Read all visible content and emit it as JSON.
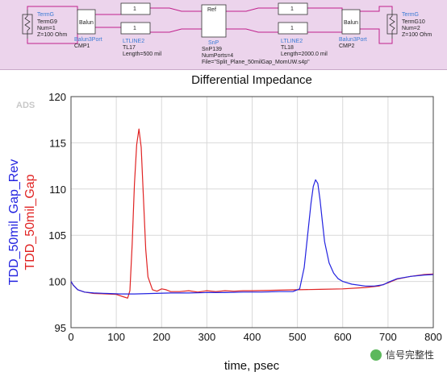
{
  "schematic": {
    "term_left": {
      "label": "TermG",
      "name": "TermG9",
      "num": "Num=1",
      "z": "Z=100 Ohm"
    },
    "balun_left": {
      "type": "Balun3Port",
      "name": "CMP1"
    },
    "tline_left": {
      "type": "LTLINE2",
      "name": "TL17",
      "length": "Length=500 mil"
    },
    "snp": {
      "type": "SnP",
      "name": "SnP139",
      "ports": "NumPorts=4",
      "file": "File=\"Split_Plane_50milGap_MomUW.s4p\""
    },
    "tline_right": {
      "type": "LTLINE2",
      "name": "TL18",
      "length": "Length=2000.0 mil"
    },
    "balun_right": {
      "type": "Balun3Port",
      "name": "CMP2"
    },
    "term_right": {
      "label": "TermG",
      "name": "TermG10",
      "num": "Num=2",
      "z": "Z=100 Ohm"
    },
    "balun_glyph": "Balun",
    "line_glyph": "1",
    "snp_glyph": "Ref"
  },
  "watermark": "信号完整性",
  "colors": {
    "rev": "#2323e0",
    "gap": "#e02323",
    "schem_bg": "#ecd4ec"
  },
  "chart_data": {
    "type": "line",
    "title": "Differential Impedance",
    "badge": "ADS",
    "xlabel": "time, psec",
    "xlim": [
      0,
      800
    ],
    "ylim": [
      95,
      120
    ],
    "xticks": [
      0,
      100,
      200,
      300,
      400,
      500,
      600,
      700,
      800
    ],
    "yticks": [
      95,
      100,
      105,
      110,
      115,
      120
    ],
    "grid": true,
    "series": [
      {
        "name": "TDD_50mil_Gap_Rev",
        "color": "#2323e0",
        "x": [
          0,
          5,
          15,
          30,
          50,
          80,
          110,
          140,
          180,
          220,
          260,
          300,
          340,
          380,
          420,
          460,
          490,
          505,
          515,
          522,
          530,
          535,
          540,
          545,
          550,
          555,
          560,
          570,
          580,
          590,
          600,
          620,
          650,
          670,
          690,
          700,
          720,
          750,
          780,
          800
        ],
        "y": [
          100.0,
          99.6,
          99.1,
          98.85,
          98.75,
          98.7,
          98.65,
          98.65,
          98.7,
          98.75,
          98.75,
          98.8,
          98.8,
          98.85,
          98.85,
          98.9,
          98.9,
          99.2,
          101.5,
          104.8,
          108.5,
          110.3,
          111.0,
          110.6,
          108.8,
          106.5,
          104.3,
          102.0,
          100.9,
          100.3,
          100.0,
          99.7,
          99.5,
          99.5,
          99.65,
          99.9,
          100.3,
          100.55,
          100.7,
          100.75
        ]
      },
      {
        "name": "TDD_50mil_Gap",
        "color": "#e02323",
        "x": [
          0,
          5,
          15,
          30,
          50,
          80,
          100,
          115,
          125,
          130,
          135,
          140,
          145,
          150,
          155,
          160,
          165,
          170,
          180,
          190,
          200,
          210,
          220,
          240,
          260,
          280,
          300,
          320,
          340,
          360,
          380,
          400,
          450,
          500,
          550,
          600,
          650,
          680,
          700,
          720,
          750,
          780,
          800
        ],
        "y": [
          100.0,
          99.6,
          99.1,
          98.85,
          98.7,
          98.65,
          98.6,
          98.35,
          98.2,
          99.0,
          104.0,
          110.5,
          114.8,
          116.5,
          114.5,
          109.0,
          103.5,
          100.5,
          99.1,
          98.95,
          99.2,
          99.1,
          98.9,
          98.9,
          99.0,
          98.85,
          99.0,
          98.9,
          99.0,
          98.95,
          99.0,
          99.0,
          99.05,
          99.1,
          99.15,
          99.2,
          99.35,
          99.5,
          99.85,
          100.25,
          100.55,
          100.75,
          100.8
        ]
      }
    ]
  }
}
